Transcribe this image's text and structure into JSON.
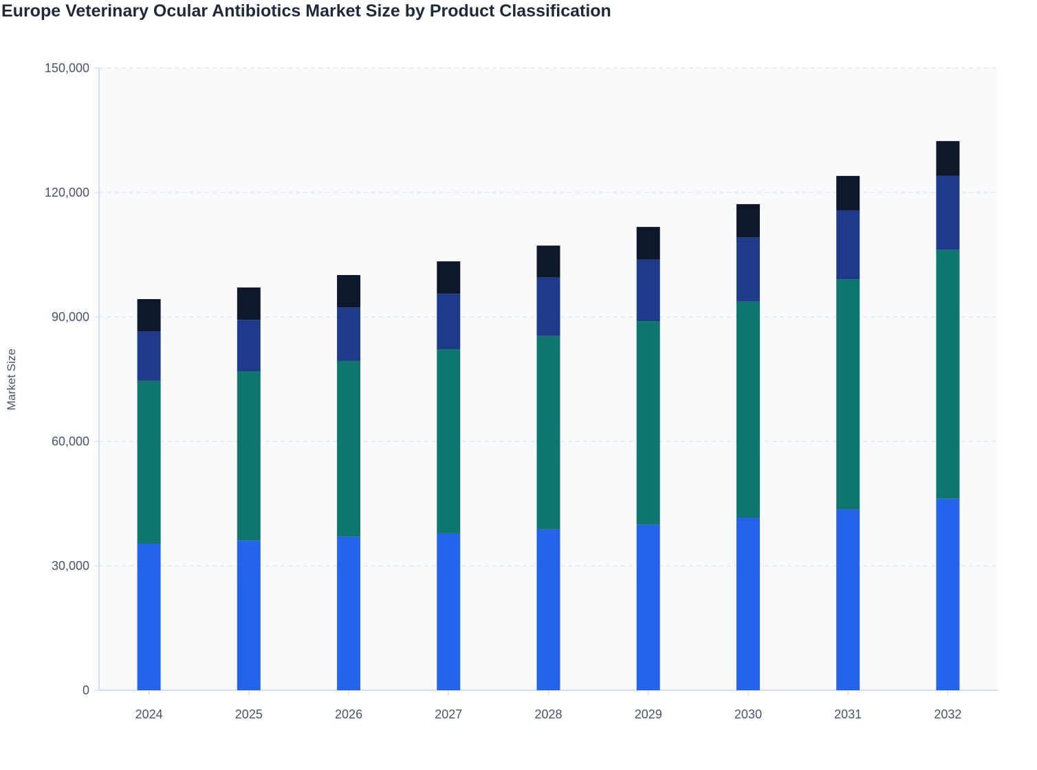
{
  "chart_data": {
    "type": "bar",
    "stacked": true,
    "title": "Europe Veterinary Ocular Antibiotics Market Size by Product Classification",
    "xlabel": "",
    "ylabel": "Market Size",
    "ylim": [
      0,
      150000
    ],
    "yticks": [
      0,
      30000,
      60000,
      90000,
      120000,
      150000
    ],
    "ytick_labels": [
      "0",
      "30,000",
      "60,000",
      "90,000",
      "120,000",
      "150,000"
    ],
    "grid": true,
    "legend": "none",
    "categories": [
      "2024",
      "2025",
      "2026",
      "2027",
      "2028",
      "2029",
      "2030",
      "2031",
      "2032"
    ],
    "series": [
      {
        "color": "#2563eb",
        "values": [
          35300,
          36100,
          37000,
          37800,
          38800,
          39900,
          41600,
          43600,
          46200
        ]
      },
      {
        "color": "#0f766e",
        "values": [
          39300,
          40800,
          42400,
          44400,
          46600,
          49100,
          52100,
          55500,
          60000
        ]
      },
      {
        "color": "#1e3a8a",
        "values": [
          11900,
          12400,
          12900,
          13400,
          14100,
          14800,
          15500,
          16600,
          17800
        ]
      },
      {
        "color": "#0f172a",
        "values": [
          7800,
          7800,
          7800,
          7800,
          7700,
          7900,
          8000,
          8300,
          8400
        ]
      }
    ]
  }
}
